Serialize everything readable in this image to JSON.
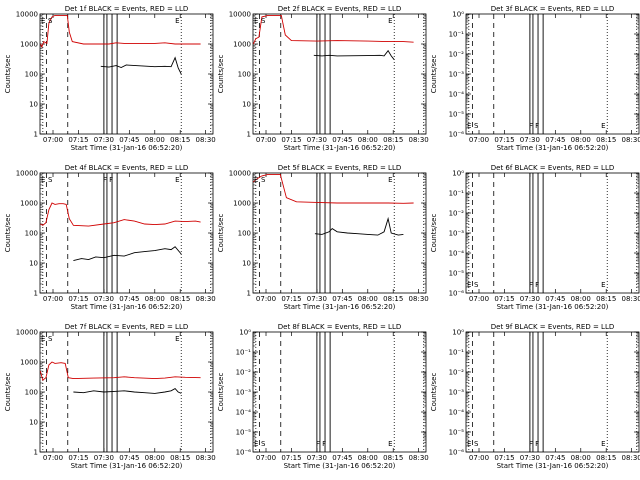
{
  "xlabel": "Start Time (31-Jan-16 06:52:20)",
  "ylabel": "Counts/sec",
  "x_tick_labels": [
    "07:00",
    "07:15",
    "07:30",
    "07:45",
    "08:00",
    "08:15",
    "08:30"
  ],
  "colors": {
    "events": "#000000",
    "lld": "#d00000"
  },
  "chart_data": [
    {
      "type": "line",
      "title": "Det 1f BLACK = Events, RED = LLD",
      "scale": "log",
      "ylim": [
        1,
        10000
      ],
      "yticks": [
        "1",
        "10",
        "100",
        "1000",
        "10000"
      ],
      "markers": [
        "E",
        "S"
      ],
      "marker_tail": "",
      "end_label": "E",
      "series": [
        {
          "name": "Events",
          "points": [
            [
              7.47,
              180
            ],
            [
              7.55,
              170
            ],
            [
              7.62,
              190
            ],
            [
              7.67,
              165
            ],
            [
              7.72,
              200
            ],
            [
              8.0,
              175
            ],
            [
              8.1,
              180
            ],
            [
              8.16,
              175
            ],
            [
              8.2,
              350
            ],
            [
              8.23,
              160
            ],
            [
              8.26,
              100
            ]
          ]
        },
        {
          "name": "LLD",
          "points": [
            [
              6.875,
              1000
            ],
            [
              6.89,
              800
            ],
            [
              6.91,
              1200
            ],
            [
              6.94,
              1050
            ],
            [
              6.96,
              5000
            ],
            [
              6.99,
              8000
            ],
            [
              7.02,
              9000
            ],
            [
              7.08,
              9000
            ],
            [
              7.14,
              9000
            ],
            [
              7.16,
              2500
            ],
            [
              7.19,
              1200
            ],
            [
              7.3,
              1000
            ],
            [
              7.55,
              1000
            ],
            [
              7.62,
              1100
            ],
            [
              7.7,
              1050
            ],
            [
              8.0,
              1050
            ],
            [
              8.1,
              1100
            ],
            [
              8.2,
              1000
            ],
            [
              8.3,
              1000
            ],
            [
              8.45,
              1000
            ]
          ]
        }
      ]
    },
    {
      "type": "line",
      "title": "Det 2f BLACK = Events, RED = LLD",
      "scale": "log",
      "ylim": [
        1,
        10000
      ],
      "yticks": [
        "1",
        "10",
        "100",
        "1000",
        "10000"
      ],
      "markers": [
        "E",
        "S"
      ],
      "marker_tail": "",
      "end_label": "E",
      "series": [
        {
          "name": "Events",
          "points": [
            [
              7.47,
              420
            ],
            [
              7.55,
              400
            ],
            [
              7.62,
              420
            ],
            [
              7.7,
              400
            ],
            [
              8.0,
              410
            ],
            [
              8.12,
              420
            ],
            [
              8.16,
              400
            ],
            [
              8.2,
              600
            ],
            [
              8.23,
              400
            ],
            [
              8.26,
              300
            ]
          ]
        },
        {
          "name": "LLD",
          "points": [
            [
              6.875,
              1000
            ],
            [
              6.9,
              1500
            ],
            [
              6.93,
              1700
            ],
            [
              6.96,
              8000
            ],
            [
              7.02,
              9000
            ],
            [
              7.1,
              9000
            ],
            [
              7.15,
              9000
            ],
            [
              7.19,
              2000
            ],
            [
              7.25,
              1300
            ],
            [
              7.5,
              1250
            ],
            [
              7.7,
              1300
            ],
            [
              8.0,
              1250
            ],
            [
              8.2,
              1200
            ],
            [
              8.35,
              1200
            ],
            [
              8.45,
              1150
            ]
          ]
        }
      ]
    },
    {
      "type": "line",
      "title": "Det 3f BLACK = Events, RED = LLD",
      "scale": "log",
      "ylim": [
        1e-06,
        1
      ],
      "yticks": [
        "10⁻⁶",
        "10⁻⁵",
        "10⁻⁴",
        "10⁻³",
        "10⁻²",
        "10⁻¹",
        "10⁰"
      ],
      "markers": [
        "E",
        "S"
      ],
      "marker_tail": "F F",
      "end_label": "E",
      "series": []
    },
    {
      "type": "line",
      "title": "Det 4f BLACK = Events, RED = LLD",
      "scale": "log",
      "ylim": [
        1,
        10000
      ],
      "yticks": [
        "1",
        "10",
        "100",
        "1000",
        "10000"
      ],
      "markers": [
        "E",
        "S"
      ],
      "marker_tail": "F F",
      "end_label": "E",
      "series": [
        {
          "name": "Events",
          "points": [
            [
              7.2,
              12
            ],
            [
              7.28,
              14
            ],
            [
              7.35,
              13
            ],
            [
              7.42,
              16
            ],
            [
              7.5,
              15
            ],
            [
              7.6,
              18
            ],
            [
              7.7,
              17
            ],
            [
              7.8,
              22
            ],
            [
              7.9,
              24
            ],
            [
              8.0,
              26
            ],
            [
              8.1,
              30
            ],
            [
              8.16,
              28
            ],
            [
              8.2,
              35
            ],
            [
              8.26,
              20
            ]
          ]
        },
        {
          "name": "LLD",
          "points": [
            [
              6.875,
              200
            ],
            [
              6.9,
              180
            ],
            [
              6.93,
              220
            ],
            [
              6.96,
              600
            ],
            [
              6.99,
              1000
            ],
            [
              7.02,
              900
            ],
            [
              7.06,
              950
            ],
            [
              7.1,
              950
            ],
            [
              7.13,
              900
            ],
            [
              7.16,
              300
            ],
            [
              7.2,
              180
            ],
            [
              7.35,
              170
            ],
            [
              7.5,
              200
            ],
            [
              7.6,
              220
            ],
            [
              7.7,
              280
            ],
            [
              7.8,
              250
            ],
            [
              7.9,
              200
            ],
            [
              8.0,
              190
            ],
            [
              8.1,
              200
            ],
            [
              8.2,
              250
            ],
            [
              8.3,
              240
            ],
            [
              8.4,
              250
            ],
            [
              8.45,
              230
            ]
          ]
        }
      ]
    },
    {
      "type": "line",
      "title": "Det 5f BLACK = Events, RED = LLD",
      "scale": "log",
      "ylim": [
        1,
        10000
      ],
      "yticks": [
        "1",
        "10",
        "100",
        "1000",
        "10000"
      ],
      "markers": [
        "E",
        "S"
      ],
      "marker_tail": "",
      "end_label": "E",
      "series": [
        {
          "name": "Events",
          "points": [
            [
              7.48,
              95
            ],
            [
              7.55,
              90
            ],
            [
              7.62,
              110
            ],
            [
              7.65,
              140
            ],
            [
              7.7,
              110
            ],
            [
              7.8,
              100
            ],
            [
              7.9,
              95
            ],
            [
              8.0,
              90
            ],
            [
              8.1,
              85
            ],
            [
              8.16,
              110
            ],
            [
              8.2,
              300
            ],
            [
              8.23,
              100
            ],
            [
              8.3,
              85
            ],
            [
              8.35,
              90
            ]
          ]
        },
        {
          "name": "LLD",
          "points": [
            [
              6.875,
              5000
            ],
            [
              6.9,
              6000
            ],
            [
              6.93,
              7000
            ],
            [
              6.96,
              8000
            ],
            [
              7.02,
              9000
            ],
            [
              7.1,
              9000
            ],
            [
              7.14,
              9000
            ],
            [
              7.2,
              1500
            ],
            [
              7.3,
              1100
            ],
            [
              7.5,
              1050
            ],
            [
              7.7,
              1000
            ],
            [
              8.0,
              1000
            ],
            [
              8.2,
              1000
            ],
            [
              8.35,
              980
            ],
            [
              8.45,
              1000
            ]
          ]
        }
      ]
    },
    {
      "type": "line",
      "title": "Det 6f BLACK = Events, RED = LLD",
      "scale": "log",
      "ylim": [
        1e-06,
        1
      ],
      "yticks": [
        "10⁻⁶",
        "10⁻⁵",
        "10⁻⁴",
        "10⁻³",
        "10⁻²",
        "10⁻¹",
        "10⁰"
      ],
      "markers": [
        "E",
        "S"
      ],
      "marker_tail": "F F",
      "end_label": "E",
      "series": []
    },
    {
      "type": "line",
      "title": "Det 7f BLACK = Events, RED = LLD",
      "scale": "log",
      "ylim": [
        1,
        10000
      ],
      "yticks": [
        "1",
        "10",
        "100",
        "1000",
        "10000"
      ],
      "markers": [
        "E",
        "S"
      ],
      "marker_tail": "",
      "end_label": "E",
      "series": [
        {
          "name": "Events",
          "points": [
            [
              7.2,
              100
            ],
            [
              7.3,
              95
            ],
            [
              7.4,
              110
            ],
            [
              7.5,
              100
            ],
            [
              7.6,
              105
            ],
            [
              7.7,
              110
            ],
            [
              7.8,
              100
            ],
            [
              7.9,
              95
            ],
            [
              8.0,
              90
            ],
            [
              8.1,
              100
            ],
            [
              8.16,
              110
            ],
            [
              8.2,
              130
            ],
            [
              8.23,
              100
            ],
            [
              8.26,
              90
            ]
          ]
        },
        {
          "name": "LLD",
          "points": [
            [
              6.875,
              500
            ],
            [
              6.9,
              250
            ],
            [
              6.93,
              300
            ],
            [
              6.96,
              800
            ],
            [
              6.99,
              1000
            ],
            [
              7.02,
              900
            ],
            [
              7.08,
              950
            ],
            [
              7.12,
              900
            ],
            [
              7.15,
              300
            ],
            [
              7.2,
              280
            ],
            [
              7.4,
              290
            ],
            [
              7.6,
              300
            ],
            [
              7.7,
              320
            ],
            [
              7.8,
              300
            ],
            [
              8.0,
              280
            ],
            [
              8.1,
              290
            ],
            [
              8.2,
              320
            ],
            [
              8.3,
              310
            ],
            [
              8.45,
              300
            ]
          ]
        }
      ]
    },
    {
      "type": "line",
      "title": "Det 8f BLACK = Events, RED = LLD",
      "scale": "log",
      "ylim": [
        1e-06,
        1
      ],
      "yticks": [
        "10⁻⁶",
        "10⁻⁵",
        "10⁻⁴",
        "10⁻³",
        "10⁻²",
        "10⁻¹",
        "10⁰"
      ],
      "markers": [
        "E",
        "S"
      ],
      "marker_tail": "F F",
      "end_label": "E",
      "series": []
    },
    {
      "type": "line",
      "title": "Det 9f BLACK = Events, RED = LLD",
      "scale": "log",
      "ylim": [
        1e-06,
        1
      ],
      "yticks": [
        "10⁻⁶",
        "10⁻⁵",
        "10⁻⁴",
        "10⁻³",
        "10⁻²",
        "10⁻¹",
        "10⁰"
      ],
      "markers": [
        "E",
        "S"
      ],
      "marker_tail": "F F",
      "end_label": "E",
      "series": []
    }
  ]
}
